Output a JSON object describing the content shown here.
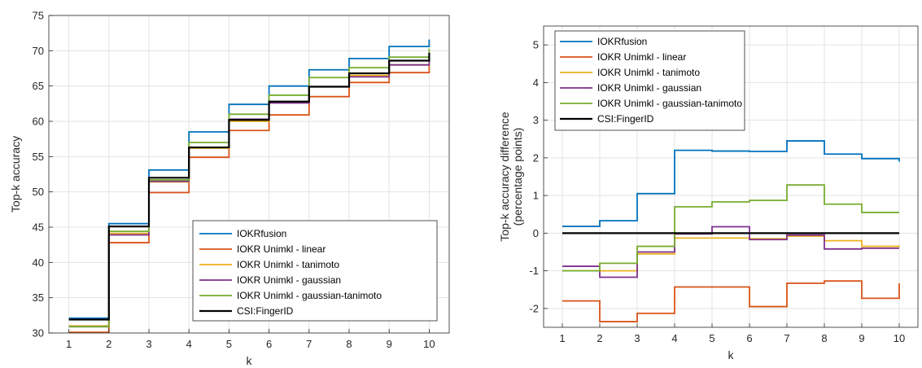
{
  "chart_data": [
    {
      "type": "line",
      "step": true,
      "xlabel": "k",
      "ylabel": "Top-k accuracy",
      "xlim": [
        0.5,
        10.5
      ],
      "ylim": [
        30,
        75
      ],
      "xticks": [
        1,
        2,
        3,
        4,
        5,
        6,
        7,
        8,
        9,
        10
      ],
      "yticks": [
        30,
        35,
        40,
        45,
        50,
        55,
        60,
        65,
        70,
        75
      ],
      "grid": true,
      "legend_position": "bottom-right",
      "x": [
        1,
        2,
        3,
        4,
        5,
        6,
        7,
        8,
        9,
        10
      ],
      "series": [
        {
          "name": "IOKRfusion",
          "color": "#0072BD",
          "values": [
            32.1,
            45.5,
            53.1,
            58.5,
            62.4,
            65.0,
            67.3,
            68.9,
            70.6,
            71.6
          ]
        },
        {
          "name": "IOKR Unimkl - linear",
          "color": "#D95319",
          "values": [
            30.1,
            42.8,
            49.9,
            54.9,
            58.7,
            60.9,
            63.5,
            65.5,
            66.9,
            68.2
          ]
        },
        {
          "name": "IOKR Unimkl - tanimoto",
          "color": "#EDB120",
          "values": [
            31.0,
            44.1,
            51.4,
            56.2,
            60.0,
            62.7,
            64.9,
            66.5,
            68.0,
            69.4
          ]
        },
        {
          "name": "IOKR Unimkl - gaussian",
          "color": "#7E2F8E",
          "values": [
            30.9,
            43.9,
            51.5,
            56.3,
            60.3,
            62.6,
            64.9,
            66.3,
            68.0,
            69.3
          ]
        },
        {
          "name": "IOKR Unimkl - gaussian-tanimoto",
          "color": "#77AC30",
          "values": [
            30.9,
            44.4,
            51.7,
            57.0,
            61.0,
            63.7,
            66.2,
            67.6,
            69.1,
            70.3
          ]
        },
        {
          "name": "CSI:FingerID",
          "color": "#000000",
          "values": [
            31.9,
            45.1,
            52.0,
            56.3,
            60.2,
            62.8,
            64.9,
            66.8,
            68.6,
            69.7
          ]
        }
      ]
    },
    {
      "type": "line",
      "step": true,
      "xlabel": "k",
      "ylabel": "Top-k accuracy difference",
      "ylabel2": "(percentage points)",
      "xlim": [
        0.5,
        10.5
      ],
      "ylim": [
        -2.5,
        5.5
      ],
      "xticks": [
        1,
        2,
        3,
        4,
        5,
        6,
        7,
        8,
        9,
        10
      ],
      "yticks": [
        -2,
        -1,
        0,
        1,
        2,
        3,
        4,
        5
      ],
      "grid": true,
      "legend_position": "top-left",
      "x": [
        1,
        2,
        3,
        4,
        5,
        6,
        7,
        8,
        9,
        10
      ],
      "series": [
        {
          "name": "IOKRfusion",
          "color": "#0072BD",
          "values": [
            0.18,
            0.33,
            1.05,
            2.2,
            2.18,
            2.17,
            2.45,
            2.1,
            1.98,
            1.9
          ]
        },
        {
          "name": "IOKR Unimkl - linear",
          "color": "#D95319",
          "values": [
            -1.8,
            -2.35,
            -2.13,
            -1.43,
            -1.43,
            -1.95,
            -1.33,
            -1.27,
            -1.73,
            -1.33
          ]
        },
        {
          "name": "IOKR Unimkl - tanimoto",
          "color": "#EDB120",
          "values": [
            -1.0,
            -1.0,
            -0.55,
            -0.13,
            -0.13,
            -0.15,
            -0.08,
            -0.2,
            -0.35,
            -0.33
          ]
        },
        {
          "name": "IOKR Unimkl - gaussian",
          "color": "#7E2F8E",
          "values": [
            -0.88,
            -1.17,
            -0.5,
            -0.02,
            0.17,
            -0.17,
            -0.05,
            -0.42,
            -0.4,
            -0.4
          ]
        },
        {
          "name": "IOKR Unimkl - gaussian-tanimoto",
          "color": "#77AC30",
          "values": [
            -1.0,
            -0.8,
            -0.35,
            0.7,
            0.83,
            0.87,
            1.28,
            0.77,
            0.55,
            0.55
          ]
        },
        {
          "name": "CSI:FingerID",
          "color": "#000000",
          "values": [
            0,
            0,
            0,
            0,
            0,
            0,
            0,
            0,
            0,
            0
          ]
        }
      ]
    }
  ]
}
